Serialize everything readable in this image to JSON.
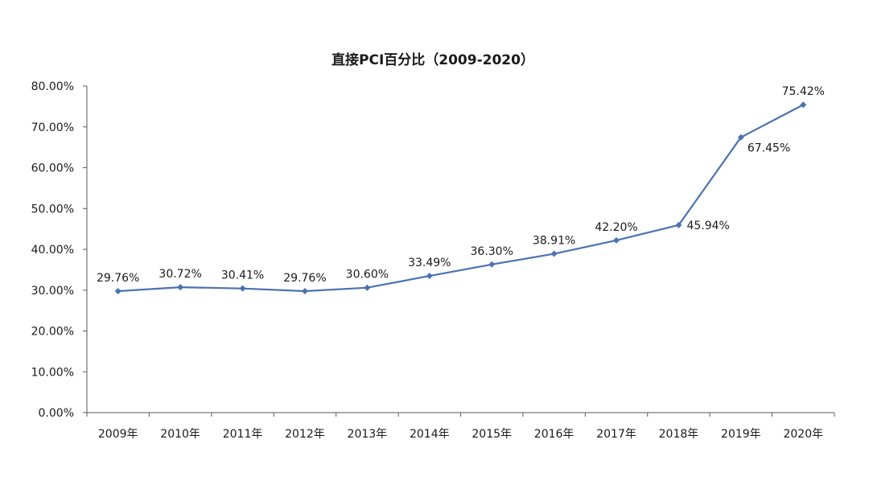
{
  "chart_data": {
    "type": "line",
    "title": "直接PCI百分比（2009-2020）",
    "xlabel": "",
    "ylabel": "",
    "categories": [
      "2009年",
      "2010年",
      "2011年",
      "2012年",
      "2013年",
      "2014年",
      "2015年",
      "2016年",
      "2017年",
      "2018年",
      "2019年",
      "2020年"
    ],
    "series": [
      {
        "values": [
          29.76,
          30.72,
          30.41,
          29.76,
          30.6,
          33.49,
          36.3,
          38.91,
          42.2,
          45.94,
          67.45,
          75.42
        ],
        "labels": [
          "29.76%",
          "30.72%",
          "30.41%",
          "29.76%",
          "30.60%",
          "33.49%",
          "36.30%",
          "38.91%",
          "42.20%",
          "45.94%",
          "67.45%",
          "75.42%"
        ],
        "color": "#4a72b0"
      }
    ],
    "ylim": [
      0,
      80
    ],
    "yticks": [
      "0.00%",
      "10.00%",
      "20.00%",
      "30.00%",
      "40.00%",
      "50.00%",
      "60.00%",
      "70.00%",
      "80.00%"
    ],
    "grid": false,
    "legend": "none",
    "marker": "diamond",
    "data_labels": "on"
  }
}
